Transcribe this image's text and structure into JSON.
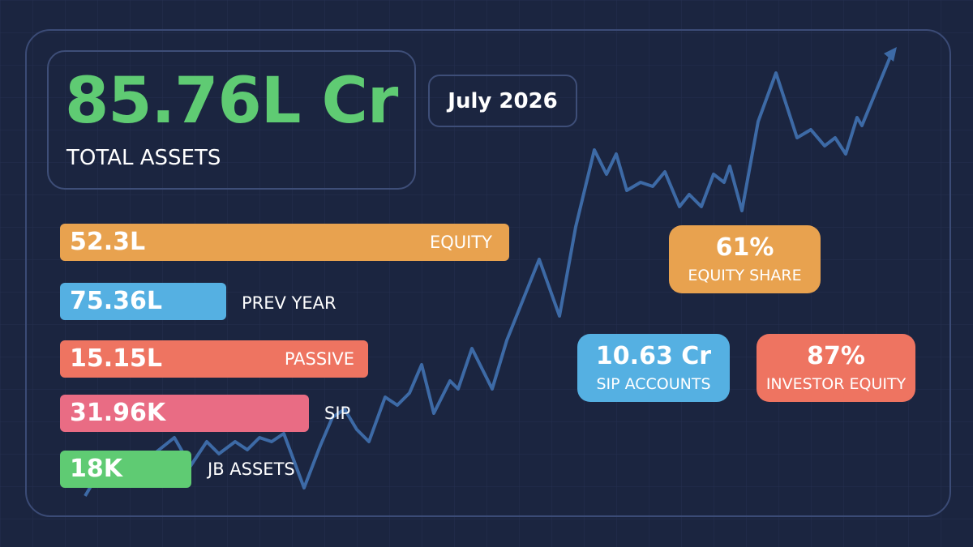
{
  "total": {
    "value": "85.76L Cr",
    "label": "TOTAL ASSETS"
  },
  "date": "July 2026",
  "metrics": [
    {
      "value": "52.3L",
      "label": "EQUITY"
    },
    {
      "value": "75.36L",
      "label": "PREV YEAR"
    },
    {
      "value": "15.15L",
      "label": "PASSIVE"
    },
    {
      "value": "31.96K",
      "label": "SIP"
    },
    {
      "value": "18K",
      "label": "JB ASSETS"
    }
  ],
  "cards": [
    {
      "value": "61%",
      "label": "EQUITY SHARE"
    },
    {
      "value": "10.63 Cr",
      "label": "SIP ACCOUNTS"
    },
    {
      "value": "87%",
      "label": "INVESTOR EQUITY"
    }
  ]
}
